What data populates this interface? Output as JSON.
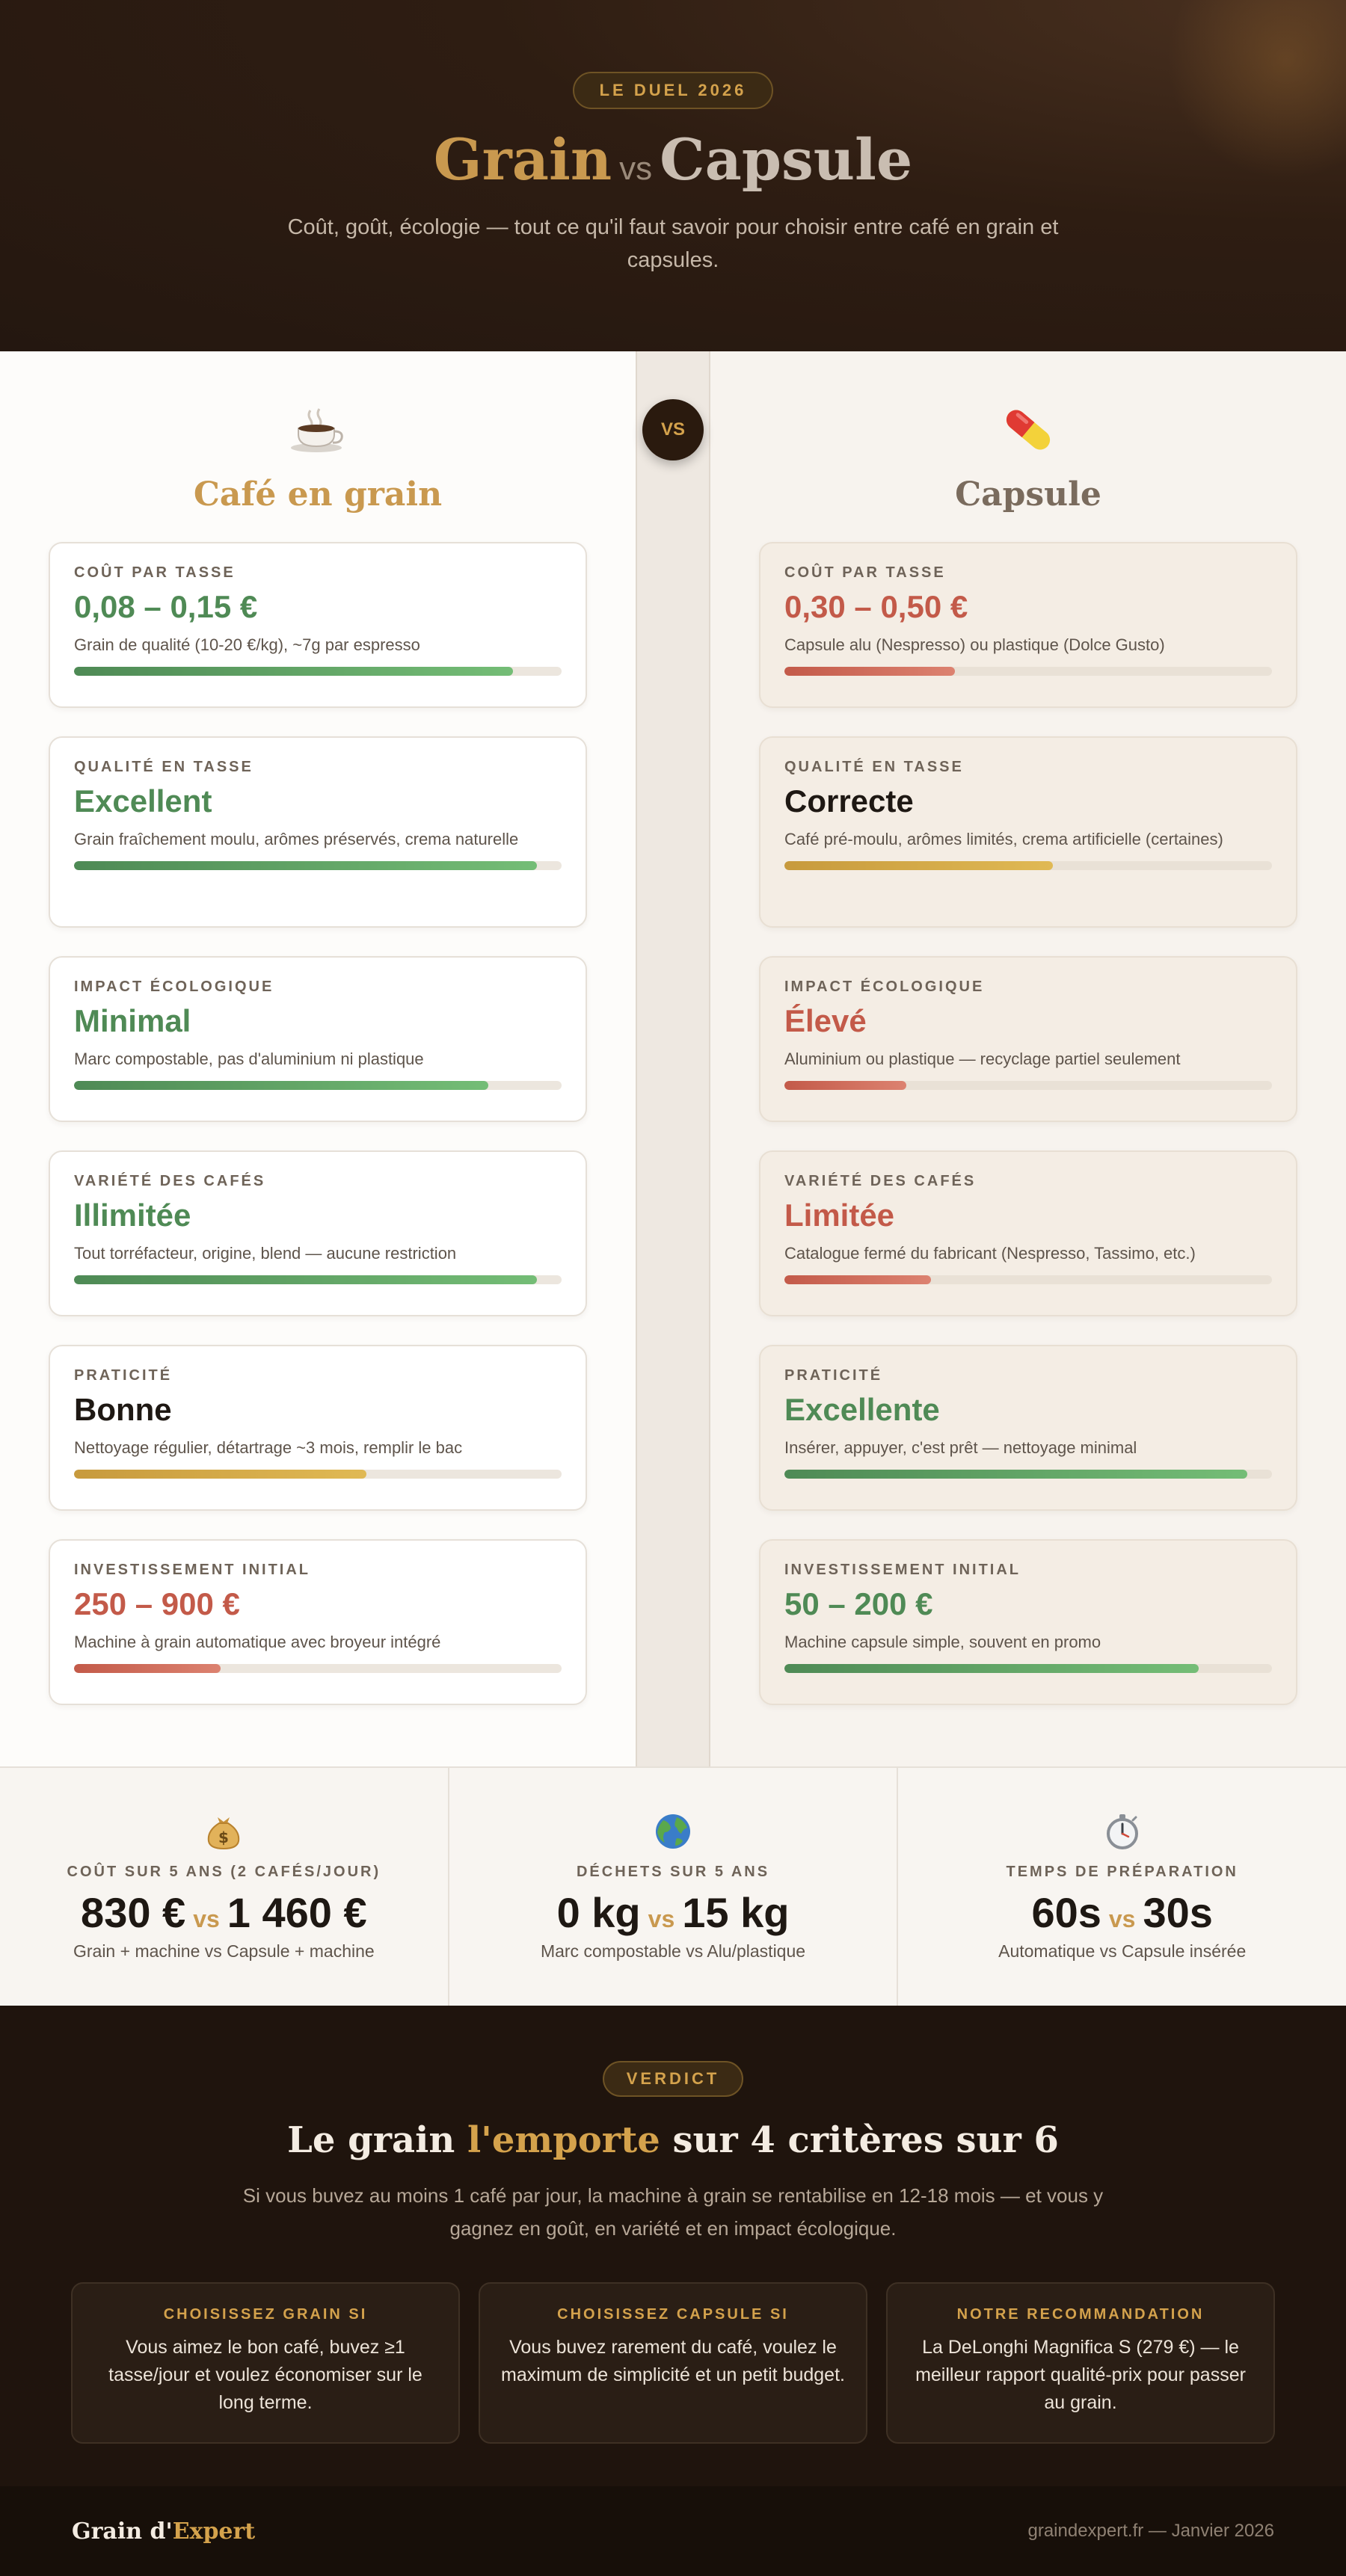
{
  "hero": {
    "badge": "LE DUEL 2026",
    "title_grain": "Grain",
    "title_vs": "vs",
    "title_capsule": "Capsule",
    "subtitle": "Coût, goût, écologie — tout ce qu'il faut savoir pour choisir entre café en grain et capsules."
  },
  "comparison": {
    "vs_label": "VS",
    "left": {
      "icon": "coffee-cup-icon",
      "title": "Café en grain",
      "cards": [
        {
          "label": "COÛT PAR TASSE",
          "value": "0,08 – 0,15 €",
          "desc": "Grain de qualité (10-20 €/kg), ~7g par espresso",
          "score": 0.9,
          "tone": "green"
        },
        {
          "label": "QUALITÉ EN TASSE",
          "value": "Excellent",
          "desc": "Grain fraîchement moulu, arômes préservés, crema naturelle",
          "score": 0.95,
          "tone": "green"
        },
        {
          "label": "IMPACT ÉCOLOGIQUE",
          "value": "Minimal",
          "desc": "Marc compostable, pas d'aluminium ni plastique",
          "score": 0.85,
          "tone": "green"
        },
        {
          "label": "VARIÉTÉ DES CAFÉS",
          "value": "Illimitée",
          "desc": "Tout torréfacteur, origine, blend — aucune restriction",
          "score": 0.95,
          "tone": "green"
        },
        {
          "label": "PRATICITÉ",
          "value": "Bonne",
          "desc": "Nettoyage régulier, détartrage ~3 mois, remplir le bac",
          "score": 0.6,
          "tone": "yellow"
        },
        {
          "label": "INVESTISSEMENT INITIAL",
          "value": "250 – 900 €",
          "desc": "Machine à grain automatique avec broyeur intégré",
          "score": 0.3,
          "tone": "red"
        }
      ]
    },
    "right": {
      "icon": "capsule-pill-icon",
      "title": "Capsule",
      "cards": [
        {
          "label": "COÛT PAR TASSE",
          "value": "0,30 – 0,50 €",
          "desc": "Capsule alu (Nespresso) ou plastique (Dolce Gusto)",
          "score": 0.35,
          "tone": "red"
        },
        {
          "label": "QUALITÉ EN TASSE",
          "value": "Correcte",
          "desc": "Café pré-moulu, arômes limités, crema artificielle (certaines)",
          "score": 0.55,
          "tone": "yellow"
        },
        {
          "label": "IMPACT ÉCOLOGIQUE",
          "value": "Élevé",
          "desc": "Aluminium ou plastique — recyclage partiel seulement",
          "score": 0.25,
          "tone": "red"
        },
        {
          "label": "VARIÉTÉ DES CAFÉS",
          "value": "Limitée",
          "desc": "Catalogue fermé du fabricant (Nespresso, Tassimo, etc.)",
          "score": 0.3,
          "tone": "red"
        },
        {
          "label": "PRATICITÉ",
          "value": "Excellente",
          "desc": "Insérer, appuyer, c'est prêt — nettoyage minimal",
          "score": 0.95,
          "tone": "green"
        },
        {
          "label": "INVESTISSEMENT INITIAL",
          "value": "50 – 200 €",
          "desc": "Machine capsule simple, souvent en promo",
          "score": 0.85,
          "tone": "green"
        }
      ]
    }
  },
  "stats": [
    {
      "icon": "money-bag-icon",
      "label": "COÛT SUR 5 ANS (2 CAFÉS/JOUR)",
      "left": "830 €",
      "vs": "vs",
      "right": "1 460 €",
      "desc": "Grain + machine vs Capsule + machine"
    },
    {
      "icon": "globe-icon",
      "label": "DÉCHETS SUR 5 ANS",
      "left": "0 kg",
      "vs": "vs",
      "right": "15 kg",
      "desc": "Marc compostable vs Alu/plastique"
    },
    {
      "icon": "stopwatch-icon",
      "label": "TEMPS DE PRÉPARATION",
      "left": "60s",
      "vs": "vs",
      "right": "30s",
      "desc": "Automatique vs Capsule insérée"
    }
  ],
  "verdict": {
    "badge": "VERDICT",
    "title_a": "Le grain",
    "title_hl": "l'emporte",
    "title_b": "sur 4 critères sur 6",
    "text": "Si vous buvez au moins 1 café par jour, la machine à grain se rentabilise en 12-18 mois — et vous y gagnez en goût, en variété et en impact écologique.",
    "choices": [
      {
        "title": "CHOISISSEZ GRAIN SI",
        "text": "Vous aimez le bon café, buvez ≥1 tasse/jour et voulez économiser sur le long terme."
      },
      {
        "title": "CHOISISSEZ CAPSULE SI",
        "text": "Vous buvez rarement du café, voulez le maximum de simplicité et un petit budget."
      },
      {
        "title": "NOTRE RECOMMANDATION",
        "text": "La DeLonghi Magnifica S (279 €) — le meilleur rapport qualité-prix pour passer au grain."
      }
    ]
  },
  "footer": {
    "brand_a": "Grain d'",
    "brand_b": "Expert",
    "meta": "graindexpert.fr — Janvier 2026"
  },
  "colors": {
    "accent": "#d4a24c",
    "good": "#4f8a55",
    "bad": "#c35a49",
    "medium": "#c79a3d"
  }
}
